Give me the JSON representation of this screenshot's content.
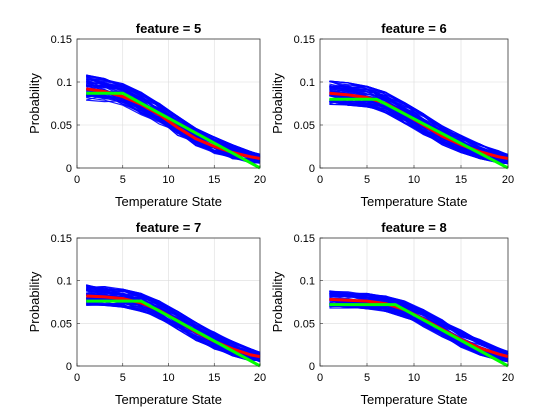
{
  "chart_data": [
    {
      "type": "line",
      "title": "feature = 5",
      "xlabel": "Temperature State",
      "ylabel": "Probability",
      "xlim": [
        0,
        20
      ],
      "ylim": [
        0,
        0.15
      ],
      "xticks": [
        "0",
        "5",
        "10",
        "15",
        "20"
      ],
      "yticks": [
        "0",
        "0.05",
        "0.1",
        "0.15"
      ],
      "grid": true,
      "series": [
        {
          "color": "#ff0000",
          "x": [
            1,
            3,
            5,
            7,
            9,
            11,
            13,
            15,
            17,
            19,
            20
          ],
          "y": [
            0.092,
            0.089,
            0.083,
            0.074,
            0.062,
            0.047,
            0.034,
            0.025,
            0.018,
            0.013,
            0.011
          ]
        },
        {
          "color": "#00ff00",
          "x": [
            1,
            5,
            20
          ],
          "y": [
            0.087,
            0.087,
            0.0
          ]
        }
      ],
      "band": {
        "color": "#0000ff",
        "x": [
          1,
          3,
          5,
          7,
          9,
          11,
          13,
          15,
          17,
          19,
          20
        ],
        "upper": [
          0.108,
          0.104,
          0.098,
          0.088,
          0.075,
          0.06,
          0.046,
          0.036,
          0.027,
          0.019,
          0.016
        ],
        "lower": [
          0.079,
          0.077,
          0.072,
          0.062,
          0.051,
          0.037,
          0.026,
          0.017,
          0.01,
          0.006,
          0.005
        ]
      }
    },
    {
      "type": "line",
      "title": "feature = 6",
      "xlabel": "Temperature State",
      "ylabel": "Probability",
      "xlim": [
        0,
        20
      ],
      "ylim": [
        0,
        0.15
      ],
      "xticks": [
        "0",
        "5",
        "10",
        "15",
        "20"
      ],
      "yticks": [
        "0",
        "0.05",
        "0.1",
        "0.15"
      ],
      "grid": true,
      "series": [
        {
          "color": "#ff0000",
          "x": [
            1,
            3,
            5,
            7,
            9,
            11,
            13,
            15,
            17,
            19,
            20
          ],
          "y": [
            0.087,
            0.085,
            0.082,
            0.075,
            0.063,
            0.05,
            0.037,
            0.027,
            0.019,
            0.013,
            0.011
          ]
        },
        {
          "color": "#00ff00",
          "x": [
            1,
            6,
            20
          ],
          "y": [
            0.08,
            0.08,
            0.0
          ]
        }
      ],
      "band": {
        "color": "#0000ff",
        "x": [
          1,
          3,
          5,
          7,
          9,
          11,
          13,
          15,
          17,
          19,
          20
        ],
        "upper": [
          0.101,
          0.099,
          0.095,
          0.088,
          0.076,
          0.063,
          0.049,
          0.038,
          0.028,
          0.02,
          0.016
        ],
        "lower": [
          0.074,
          0.073,
          0.071,
          0.064,
          0.052,
          0.039,
          0.027,
          0.018,
          0.011,
          0.006,
          0.005
        ]
      }
    },
    {
      "type": "line",
      "title": "feature = 7",
      "xlabel": "Temperature State",
      "ylabel": "Probability",
      "xlim": [
        0,
        20
      ],
      "ylim": [
        0,
        0.15
      ],
      "xticks": [
        "0",
        "5",
        "10",
        "15",
        "20"
      ],
      "yticks": [
        "0",
        "0.05",
        "0.1",
        "0.15"
      ],
      "grid": true,
      "series": [
        {
          "color": "#ff0000",
          "x": [
            1,
            3,
            5,
            7,
            9,
            11,
            13,
            15,
            17,
            19,
            20
          ],
          "y": [
            0.082,
            0.081,
            0.079,
            0.074,
            0.065,
            0.053,
            0.04,
            0.029,
            0.02,
            0.013,
            0.011
          ]
        },
        {
          "color": "#00ff00",
          "x": [
            1,
            7,
            20
          ],
          "y": [
            0.076,
            0.076,
            0.0
          ]
        }
      ],
      "band": {
        "color": "#0000ff",
        "x": [
          1,
          3,
          5,
          7,
          9,
          11,
          13,
          15,
          17,
          19,
          20
        ],
        "upper": [
          0.095,
          0.093,
          0.09,
          0.085,
          0.076,
          0.064,
          0.051,
          0.04,
          0.029,
          0.02,
          0.016
        ],
        "lower": [
          0.071,
          0.071,
          0.069,
          0.064,
          0.055,
          0.043,
          0.03,
          0.02,
          0.012,
          0.006,
          0.005
        ]
      }
    },
    {
      "type": "line",
      "title": "feature = 8",
      "xlabel": "Temperature State",
      "ylabel": "Probability",
      "xlim": [
        0,
        20
      ],
      "ylim": [
        0,
        0.15
      ],
      "xticks": [
        "0",
        "5",
        "10",
        "15",
        "20"
      ],
      "yticks": [
        "0",
        "0.05",
        "0.1",
        "0.15"
      ],
      "grid": true,
      "series": [
        {
          "color": "#ff0000",
          "x": [
            1,
            3,
            5,
            7,
            9,
            11,
            13,
            15,
            17,
            19,
            20
          ],
          "y": [
            0.078,
            0.077,
            0.076,
            0.073,
            0.066,
            0.055,
            0.043,
            0.031,
            0.021,
            0.014,
            0.011
          ]
        },
        {
          "color": "#00ff00",
          "x": [
            1,
            8,
            20
          ],
          "y": [
            0.072,
            0.072,
            0.0
          ]
        }
      ],
      "band": {
        "color": "#0000ff",
        "x": [
          1,
          3,
          5,
          7,
          9,
          11,
          13,
          15,
          17,
          19,
          20
        ],
        "upper": [
          0.088,
          0.087,
          0.085,
          0.082,
          0.076,
          0.066,
          0.054,
          0.042,
          0.031,
          0.021,
          0.017
        ],
        "lower": [
          0.068,
          0.068,
          0.067,
          0.064,
          0.057,
          0.046,
          0.034,
          0.022,
          0.013,
          0.007,
          0.005
        ]
      }
    }
  ]
}
